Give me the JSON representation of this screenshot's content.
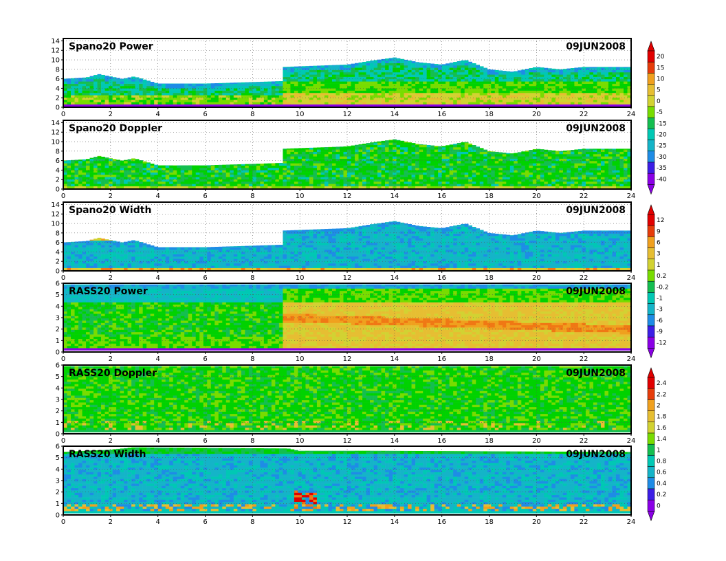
{
  "date_label": "09JUN2008",
  "colorbar_colors": [
    "#8a00e6",
    "#3c1ee6",
    "#2850f0",
    "#1e8ce6",
    "#14b4c8",
    "#00c8b4",
    "#14be50",
    "#00d200",
    "#78dc00",
    "#d2d232",
    "#e6be32",
    "#f0a01e",
    "#f07814",
    "#e63c0a",
    "#e10000"
  ],
  "chart_data": [
    {
      "type": "heatmap",
      "title": "Spano20  Power",
      "date": "09JUN2008",
      "x_ticks": [
        "0",
        "2",
        "4",
        "6",
        "8",
        "10",
        "12",
        "14",
        "16",
        "18",
        "20",
        "22",
        "24"
      ],
      "xlim": [
        0,
        24
      ],
      "y_ticks": [
        "0",
        "2",
        "4",
        "6",
        "8",
        "10",
        "12",
        "14"
      ],
      "ylim": [
        0,
        14.5
      ],
      "colorbar": [
        "20",
        "15",
        "10",
        "5",
        "0",
        "-5",
        "-15",
        "-20",
        "-25",
        "-30",
        "-35",
        "-40"
      ],
      "data_top_profile": [
        [
          0,
          6
        ],
        [
          1,
          6.3
        ],
        [
          1.5,
          7
        ],
        [
          2.5,
          6
        ],
        [
          3,
          6.5
        ],
        [
          4,
          5
        ],
        [
          6,
          5
        ],
        [
          9.2,
          5.5
        ],
        [
          9.3,
          8.5
        ],
        [
          12,
          9
        ],
        [
          13,
          9.8
        ],
        [
          14,
          10.5
        ],
        [
          15,
          9.5
        ],
        [
          16,
          9
        ],
        [
          17,
          10
        ],
        [
          18,
          8
        ],
        [
          19,
          7.5
        ],
        [
          20,
          8.5
        ],
        [
          21,
          8
        ],
        [
          22,
          8.5
        ],
        [
          24,
          8.5
        ]
      ]
    },
    {
      "type": "heatmap",
      "title": "Spano20  Doppler",
      "date": "09JUN2008",
      "x_ticks": [
        "0",
        "2",
        "4",
        "6",
        "8",
        "10",
        "12",
        "14",
        "16",
        "18",
        "20",
        "22",
        "24"
      ],
      "xlim": [
        0,
        24
      ],
      "y_ticks": [
        "0",
        "2",
        "4",
        "6",
        "8",
        "10",
        "12",
        "14"
      ],
      "ylim": [
        0,
        14.5
      ],
      "data_top_profile": [
        [
          0,
          6
        ],
        [
          1,
          6.3
        ],
        [
          1.5,
          7
        ],
        [
          2.5,
          6
        ],
        [
          3,
          6.5
        ],
        [
          4,
          5
        ],
        [
          6,
          5
        ],
        [
          9.2,
          5.5
        ],
        [
          9.3,
          8.5
        ],
        [
          12,
          9
        ],
        [
          13,
          9.8
        ],
        [
          14,
          10.5
        ],
        [
          15,
          9.5
        ],
        [
          16,
          9
        ],
        [
          17,
          10
        ],
        [
          18,
          8
        ],
        [
          19,
          7.5
        ],
        [
          20,
          8.5
        ],
        [
          21,
          8
        ],
        [
          22,
          8.5
        ],
        [
          24,
          8.5
        ]
      ]
    },
    {
      "type": "heatmap",
      "title": "Spano20  Width",
      "date": "09JUN2008",
      "x_ticks": [
        "0",
        "2",
        "4",
        "6",
        "8",
        "10",
        "12",
        "14",
        "16",
        "18",
        "20",
        "22",
        "24"
      ],
      "xlim": [
        0,
        24
      ],
      "y_ticks": [
        "0",
        "2",
        "4",
        "6",
        "8",
        "10",
        "12",
        "14"
      ],
      "ylim": [
        0,
        14.5
      ],
      "colorbar": [
        "12",
        "9",
        "6",
        "3",
        "1",
        "0.2",
        "-0.2",
        "-1",
        "-3",
        "-6",
        "-9",
        "-12"
      ],
      "data_top_profile": [
        [
          0,
          6
        ],
        [
          1,
          6.3
        ],
        [
          1.5,
          7
        ],
        [
          2.5,
          6
        ],
        [
          3,
          6.5
        ],
        [
          4,
          5
        ],
        [
          6,
          5
        ],
        [
          9.2,
          5.5
        ],
        [
          9.3,
          8.5
        ],
        [
          12,
          9
        ],
        [
          13,
          9.8
        ],
        [
          14,
          10.5
        ],
        [
          15,
          9.5
        ],
        [
          16,
          9
        ],
        [
          17,
          10
        ],
        [
          18,
          8
        ],
        [
          19,
          7.5
        ],
        [
          20,
          8.5
        ],
        [
          21,
          8
        ],
        [
          22,
          8.5
        ],
        [
          24,
          8.5
        ]
      ]
    },
    {
      "type": "heatmap",
      "title": "RASS20  Power",
      "date": "09JUN2008",
      "x_ticks": [
        "0",
        "2",
        "4",
        "6",
        "8",
        "10",
        "12",
        "14",
        "16",
        "18",
        "20",
        "22",
        "24"
      ],
      "xlim": [
        0,
        24
      ],
      "y_ticks": [
        "0",
        "1",
        "2",
        "3",
        "4",
        "5",
        "6"
      ],
      "ylim": [
        0,
        6
      ],
      "data_top_profile": [
        [
          0,
          5.9
        ],
        [
          24,
          5.9
        ]
      ]
    },
    {
      "type": "heatmap",
      "title": "RASS20  Doppler",
      "date": "09JUN2008",
      "x_ticks": [
        "0",
        "2",
        "4",
        "6",
        "8",
        "10",
        "12",
        "14",
        "16",
        "18",
        "20",
        "22",
        "24"
      ],
      "xlim": [
        0,
        24
      ],
      "y_ticks": [
        "0",
        "1",
        "2",
        "3",
        "4",
        "5",
        "6"
      ],
      "ylim": [
        0,
        6
      ],
      "colorbar": [
        "2.4",
        "2.2",
        "2",
        "1.8",
        "1.6",
        "1.4",
        "1",
        "0.8",
        "0.6",
        "0.4",
        "0.2",
        "0"
      ],
      "data_top_profile": [
        [
          0,
          5.9
        ],
        [
          24,
          5.9
        ]
      ]
    },
    {
      "type": "heatmap",
      "title": "RASS20  Width",
      "date": "09JUN2008",
      "x_ticks": [
        "0",
        "2",
        "4",
        "6",
        "8",
        "10",
        "12",
        "14",
        "16",
        "18",
        "20",
        "22",
        "24"
      ],
      "xlim": [
        0,
        24
      ],
      "y_ticks": [
        "0",
        "1",
        "2",
        "3",
        "4",
        "5",
        "6"
      ],
      "ylim": [
        0,
        6
      ],
      "data_top_profile": [
        [
          0,
          5.5
        ],
        [
          2,
          5.7
        ],
        [
          3,
          5.9
        ],
        [
          9.5,
          5.8
        ],
        [
          10,
          5.6
        ],
        [
          13,
          5.6
        ],
        [
          24,
          5.5
        ]
      ]
    }
  ]
}
